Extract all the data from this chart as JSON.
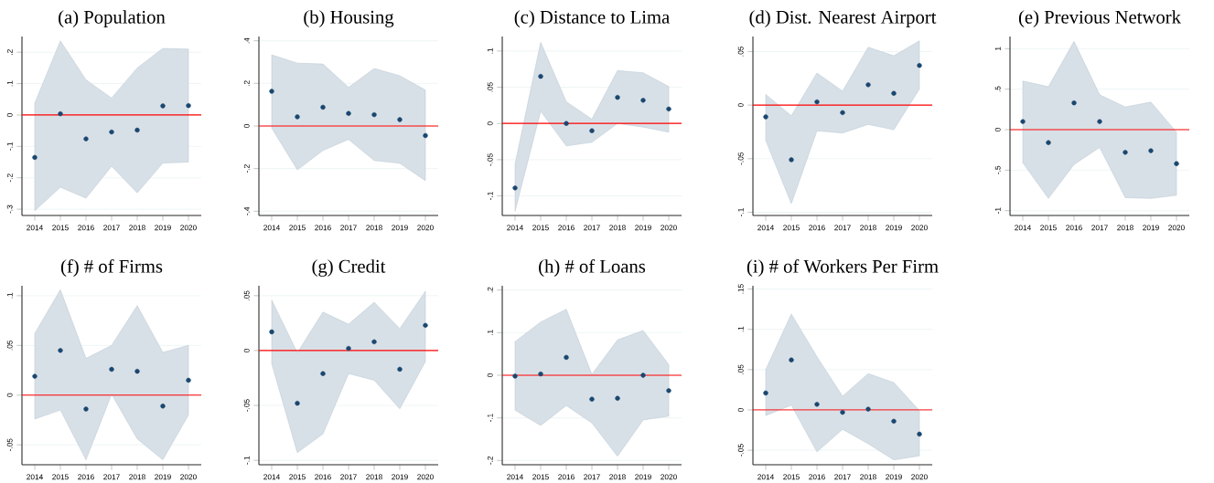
{
  "chart_data": [
    {
      "type": "scatter",
      "title": "(a) Population",
      "x": [
        2014,
        2015,
        2016,
        2017,
        2018,
        2019,
        2020
      ],
      "xlim": [
        2013.5,
        2020.5
      ],
      "xticks": [
        2014,
        2015,
        2016,
        2017,
        2018,
        2019,
        2020
      ],
      "ylim": [
        -0.32,
        0.25
      ],
      "yticks": [
        {
          "value": -0.3,
          "label": "-.3"
        },
        {
          "value": -0.2,
          "label": "-.2"
        },
        {
          "value": -0.1,
          "label": "-.1"
        },
        {
          "value": 0,
          "label": "0"
        },
        {
          "value": 0.1,
          "label": ".1"
        },
        {
          "value": 0.2,
          "label": ".2"
        }
      ],
      "grid": "y",
      "marker": "circle",
      "ref_lines": [
        {
          "axis": "y",
          "value": 0,
          "color": "#ff0000"
        }
      ],
      "series": [
        {
          "color": "#1a476f",
          "values": [
            -0.135,
            0.004,
            -0.076,
            -0.054,
            -0.048,
            0.029,
            0.03
          ],
          "lower": [
            -0.305,
            -0.23,
            -0.265,
            -0.163,
            -0.248,
            -0.153,
            -0.15
          ],
          "upper": [
            0.038,
            0.236,
            0.112,
            0.054,
            0.15,
            0.212,
            0.21
          ]
        }
      ]
    },
    {
      "type": "scatter",
      "title": "(b) Housing",
      "x": [
        2014,
        2015,
        2016,
        2017,
        2018,
        2019,
        2020
      ],
      "xlim": [
        2013.5,
        2020.5
      ],
      "xticks": [
        2014,
        2015,
        2016,
        2017,
        2018,
        2019,
        2020
      ],
      "ylim": [
        -0.42,
        0.42
      ],
      "yticks": [
        {
          "value": -0.4,
          "label": "-.4"
        },
        {
          "value": -0.2,
          "label": "-.2"
        },
        {
          "value": 0,
          "label": "0"
        },
        {
          "value": 0.2,
          "label": ".2"
        },
        {
          "value": 0.4,
          "label": ".4"
        }
      ],
      "grid": "y",
      "marker": "circle",
      "ref_lines": [
        {
          "axis": "y",
          "value": 0,
          "color": "#ff0000"
        }
      ],
      "series": [
        {
          "color": "#1a476f",
          "values": [
            0.163,
            0.043,
            0.088,
            0.059,
            0.053,
            0.03,
            -0.045
          ],
          "lower": [
            -0.01,
            -0.206,
            -0.115,
            -0.063,
            -0.162,
            -0.175,
            -0.257
          ],
          "upper": [
            0.334,
            0.295,
            0.291,
            0.181,
            0.27,
            0.236,
            0.169
          ]
        }
      ]
    },
    {
      "type": "scatter",
      "title": "(c) Distance to Lima",
      "x": [
        2014,
        2015,
        2016,
        2017,
        2018,
        2019,
        2020
      ],
      "xlim": [
        2013.5,
        2020.5
      ],
      "xticks": [
        2014,
        2015,
        2016,
        2017,
        2018,
        2019,
        2020
      ],
      "ylim": [
        -0.127,
        0.12
      ],
      "yticks": [
        {
          "value": -0.1,
          "label": "-.1"
        },
        {
          "value": -0.05,
          "label": "-.05"
        },
        {
          "value": 0,
          "label": "0"
        },
        {
          "value": 0.05,
          "label": ".05"
        },
        {
          "value": 0.1,
          "label": ".1"
        }
      ],
      "grid": "y",
      "marker": "circle",
      "ref_lines": [
        {
          "axis": "y",
          "value": 0,
          "color": "#ff0000"
        }
      ],
      "series": [
        {
          "color": "#1a476f",
          "values": [
            -0.089,
            0.065,
            0.0,
            -0.01,
            0.036,
            0.032,
            0.02
          ],
          "lower": [
            -0.121,
            0.017,
            -0.031,
            -0.026,
            0.0,
            -0.005,
            -0.012
          ],
          "upper": [
            -0.056,
            0.112,
            0.03,
            0.006,
            0.073,
            0.07,
            0.051
          ]
        }
      ]
    },
    {
      "type": "scatter",
      "title": "(d) Dist. Nearest Airport",
      "x": [
        2014,
        2015,
        2016,
        2017,
        2018,
        2019,
        2020
      ],
      "xlim": [
        2013.5,
        2020.5
      ],
      "xticks": [
        2014,
        2015,
        2016,
        2017,
        2018,
        2019,
        2020
      ],
      "ylim": [
        -0.103,
        0.064
      ],
      "yticks": [
        {
          "value": -0.1,
          "label": "-.1"
        },
        {
          "value": -0.05,
          "label": "-.05"
        },
        {
          "value": 0,
          "label": "0"
        },
        {
          "value": 0.05,
          "label": ".05"
        }
      ],
      "grid": "y",
      "marker": "circle",
      "ref_lines": [
        {
          "axis": "y",
          "value": 0,
          "color": "#ff0000"
        }
      ],
      "series": [
        {
          "color": "#1a476f",
          "values": [
            -0.011,
            -0.051,
            0.003,
            -0.007,
            0.019,
            0.011,
            0.037
          ],
          "lower": [
            -0.033,
            -0.092,
            -0.024,
            -0.026,
            -0.018,
            -0.023,
            0.015
          ],
          "upper": [
            0.01,
            -0.01,
            0.03,
            0.013,
            0.054,
            0.046,
            0.06
          ]
        }
      ]
    },
    {
      "type": "scatter",
      "title": "(e) Previous Network",
      "x": [
        2014,
        2015,
        2016,
        2017,
        2018,
        2019,
        2020
      ],
      "xlim": [
        2013.5,
        2020.5
      ],
      "xticks": [
        2014,
        2015,
        2016,
        2017,
        2018,
        2019,
        2020
      ],
      "ylim": [
        -1.06,
        1.15
      ],
      "yticks": [
        {
          "value": -1,
          "label": "-1"
        },
        {
          "value": -0.5,
          "label": "-.5"
        },
        {
          "value": 0,
          "label": "0"
        },
        {
          "value": 0.5,
          "label": ".5"
        },
        {
          "value": 1,
          "label": "1"
        }
      ],
      "grid": "y",
      "marker": "circle",
      "ref_lines": [
        {
          "axis": "y",
          "value": 0,
          "color": "#ff0000"
        }
      ],
      "series": [
        {
          "color": "#1a476f",
          "values": [
            0.1,
            -0.16,
            0.33,
            0.1,
            -0.28,
            -0.26,
            -0.42
          ],
          "lower": [
            -0.41,
            -0.85,
            -0.43,
            -0.22,
            -0.84,
            -0.85,
            -0.81
          ],
          "upper": [
            0.6,
            0.53,
            1.09,
            0.43,
            0.28,
            0.34,
            -0.03
          ]
        }
      ]
    },
    {
      "type": "scatter",
      "title": "(f) # of Firms",
      "x": [
        2014,
        2015,
        2016,
        2017,
        2018,
        2019,
        2020
      ],
      "xlim": [
        2013.5,
        2020.5
      ],
      "xticks": [
        2014,
        2015,
        2016,
        2017,
        2018,
        2019,
        2020
      ],
      "ylim": [
        -0.07,
        0.11
      ],
      "yticks": [
        {
          "value": -0.05,
          "label": "-.05"
        },
        {
          "value": 0,
          "label": "0"
        },
        {
          "value": 0.05,
          "label": ".05"
        },
        {
          "value": 0.1,
          "label": ".1"
        }
      ],
      "grid": "y",
      "marker": "circle",
      "ref_lines": [
        {
          "axis": "y",
          "value": 0,
          "color": "#ff0000"
        }
      ],
      "series": [
        {
          "color": "#1a476f",
          "values": [
            0.019,
            0.045,
            -0.014,
            0.026,
            0.024,
            -0.011,
            0.015
          ],
          "lower": [
            -0.024,
            -0.015,
            -0.065,
            0.001,
            -0.044,
            -0.065,
            -0.02
          ],
          "upper": [
            0.062,
            0.106,
            0.037,
            0.05,
            0.09,
            0.043,
            0.05
          ]
        }
      ]
    },
    {
      "type": "scatter",
      "title": "(g) Credit",
      "x": [
        2014,
        2015,
        2016,
        2017,
        2018,
        2019,
        2020
      ],
      "xlim": [
        2013.5,
        2020.5
      ],
      "xticks": [
        2014,
        2015,
        2016,
        2017,
        2018,
        2019,
        2020
      ],
      "ylim": [
        -0.104,
        0.059
      ],
      "yticks": [
        {
          "value": -0.1,
          "label": "-.1"
        },
        {
          "value": -0.05,
          "label": "-.05"
        },
        {
          "value": 0,
          "label": "0"
        },
        {
          "value": 0.05,
          "label": ".05"
        }
      ],
      "grid": "y",
      "marker": "circle",
      "ref_lines": [
        {
          "axis": "y",
          "value": 0,
          "color": "#ff0000"
        }
      ],
      "series": [
        {
          "color": "#1a476f",
          "values": [
            0.017,
            -0.048,
            -0.021,
            0.002,
            0.008,
            -0.017,
            0.023
          ],
          "lower": [
            -0.012,
            -0.093,
            -0.076,
            -0.021,
            -0.027,
            -0.053,
            -0.01
          ],
          "upper": [
            0.046,
            -0.002,
            0.035,
            0.024,
            0.044,
            0.02,
            0.054
          ]
        }
      ]
    },
    {
      "type": "scatter",
      "title": "(h) # of Loans",
      "x": [
        2014,
        2015,
        2016,
        2017,
        2018,
        2019,
        2020
      ],
      "xlim": [
        2013.5,
        2020.5
      ],
      "xticks": [
        2014,
        2015,
        2016,
        2017,
        2018,
        2019,
        2020
      ],
      "ylim": [
        -0.21,
        0.21
      ],
      "yticks": [
        {
          "value": -0.2,
          "label": "-.2"
        },
        {
          "value": -0.1,
          "label": "-.1"
        },
        {
          "value": 0,
          "label": "0"
        },
        {
          "value": 0.1,
          "label": ".1"
        },
        {
          "value": 0.2,
          "label": ".2"
        }
      ],
      "grid": "y",
      "marker": "circle",
      "ref_lines": [
        {
          "axis": "y",
          "value": 0,
          "color": "#ff0000"
        }
      ],
      "series": [
        {
          "color": "#1a476f",
          "values": [
            -0.002,
            0.003,
            0.042,
            -0.056,
            -0.054,
            0.0,
            -0.036
          ],
          "lower": [
            -0.082,
            -0.118,
            -0.071,
            -0.112,
            -0.19,
            -0.105,
            -0.096
          ],
          "upper": [
            0.079,
            0.125,
            0.155,
            0.002,
            0.083,
            0.105,
            0.025
          ]
        }
      ]
    },
    {
      "type": "scatter",
      "title": "(i) # of Workers Per Firm",
      "x": [
        2014,
        2015,
        2016,
        2017,
        2018,
        2019,
        2020
      ],
      "xlim": [
        2013.5,
        2020.5
      ],
      "xticks": [
        2014,
        2015,
        2016,
        2017,
        2018,
        2019,
        2020
      ],
      "ylim": [
        -0.068,
        0.154
      ],
      "yticks": [
        {
          "value": -0.05,
          "label": "-.05"
        },
        {
          "value": 0,
          "label": "0"
        },
        {
          "value": 0.05,
          "label": ".05"
        },
        {
          "value": 0.1,
          "label": ".1"
        },
        {
          "value": 0.15,
          "label": ".15"
        }
      ],
      "grid": "y",
      "marker": "circle",
      "ref_lines": [
        {
          "axis": "y",
          "value": 0,
          "color": "#ff0000"
        }
      ],
      "series": [
        {
          "color": "#1a476f",
          "values": [
            0.021,
            0.062,
            0.007,
            -0.003,
            0.001,
            -0.014,
            -0.03
          ],
          "lower": [
            -0.007,
            0.006,
            -0.052,
            -0.024,
            -0.042,
            -0.062,
            -0.057
          ],
          "upper": [
            0.05,
            0.119,
            0.066,
            0.017,
            0.045,
            0.034,
            -0.001
          ]
        }
      ]
    }
  ]
}
